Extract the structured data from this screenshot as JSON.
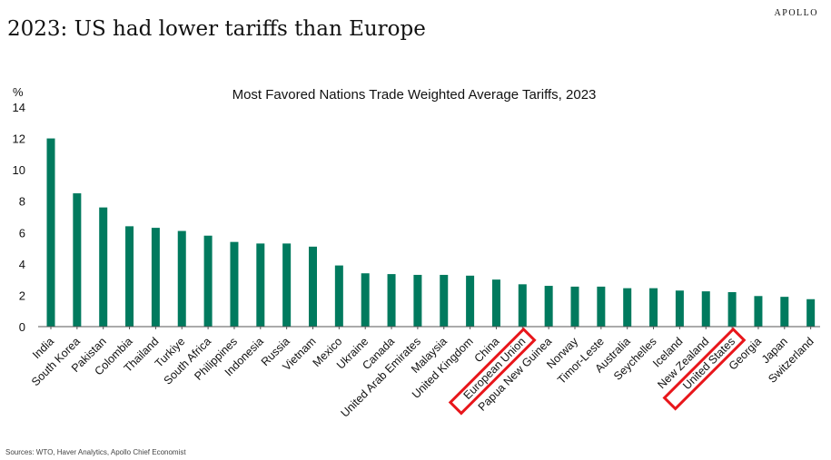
{
  "brand": "APOLLO",
  "headline": "2023: US had lower tariffs than Europe",
  "source": "Sources: WTO, Haver Analytics, Apollo Chief Economist",
  "colors": {
    "bar": "#007a5e",
    "highlight": "#e8161b",
    "axis": "#555555"
  },
  "chart_data": {
    "type": "bar",
    "title": "Most Favored Nations Trade Weighted Average Tariffs, 2023",
    "unit": "%",
    "xlabel": "",
    "ylabel": "",
    "ylim": [
      0,
      14
    ],
    "yticks": [
      0,
      2,
      4,
      6,
      8,
      10,
      12,
      14
    ],
    "grid": false,
    "categories": [
      "India",
      "South Korea",
      "Pakistan",
      "Colombia",
      "Thailand",
      "Turkiye",
      "South Africa",
      "Philippines",
      "Indonesia",
      "Russia",
      "Vietnam",
      "Mexico",
      "Ukraine",
      "Canada",
      "United Arab Emirates",
      "Malaysia",
      "United Kingdom",
      "China",
      "European Union",
      "Papua New Guinea",
      "Norway",
      "Timor-Leste",
      "Australia",
      "Seychelles",
      "Iceland",
      "New Zealand",
      "United States",
      "Georgia",
      "Japan",
      "Switzerland"
    ],
    "values": [
      12.0,
      8.5,
      7.6,
      6.4,
      6.3,
      6.1,
      5.8,
      5.4,
      5.3,
      5.3,
      5.1,
      3.9,
      3.4,
      3.35,
      3.3,
      3.3,
      3.25,
      3.0,
      2.7,
      2.6,
      2.55,
      2.55,
      2.45,
      2.45,
      2.3,
      2.25,
      2.2,
      1.95,
      1.9,
      1.75
    ],
    "highlighted": [
      "European Union",
      "United States"
    ]
  }
}
